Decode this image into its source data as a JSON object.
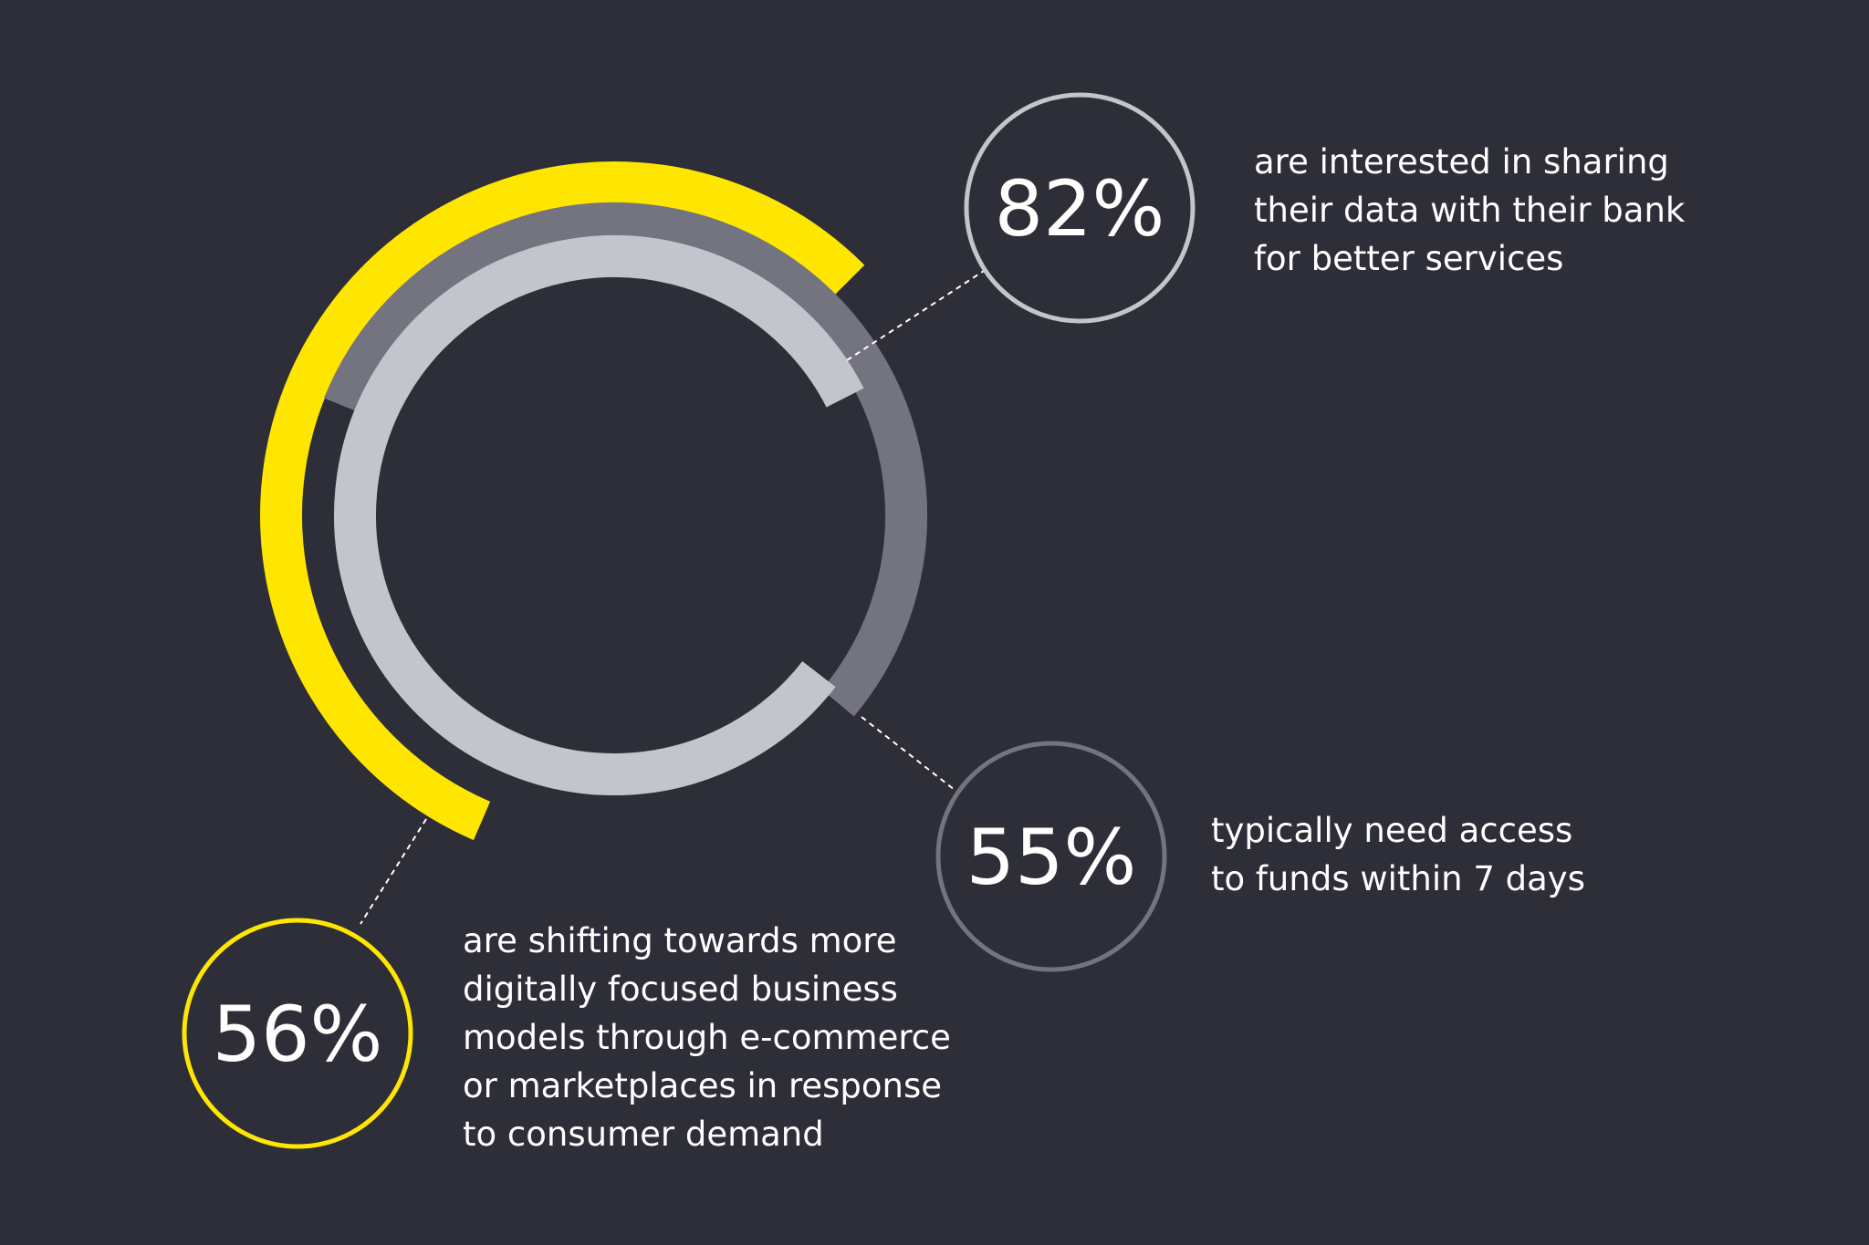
{
  "colors": {
    "background": "#2d2e37",
    "yellow": "#ffe600",
    "dark_gray": "#747480",
    "light_gray": "#c4c4cd",
    "text": "#ffffff"
  },
  "chart_data": {
    "type": "radial-bar",
    "series": [
      {
        "value": 82,
        "unit": "%",
        "label_text": "82%",
        "color": "#c4c4cd",
        "description": "are interested in sharing\ntheir data with their bank\nfor better services"
      },
      {
        "value": 55,
        "unit": "%",
        "label_text": "55%",
        "color": "#747480",
        "description": "typically need access\nto funds within 7 days"
      },
      {
        "value": 56,
        "unit": "%",
        "label_text": "56%",
        "color": "#ffe600",
        "description": "are shifting towards more\ndigitally focused business\nmodels through e-commerce\nor marketplaces in response\nto consumer demand"
      }
    ]
  }
}
